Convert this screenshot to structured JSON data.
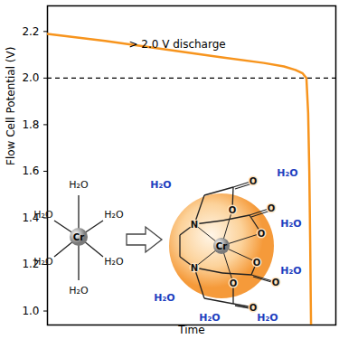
{
  "chart_data": {
    "type": "line",
    "x_label": "Time",
    "y_label": "Flow Cell Potential (V)",
    "xlim": [
      0,
      100
    ],
    "ylim": [
      0.94,
      2.31
    ],
    "yticks": [
      {
        "value": 1.0,
        "label": "1.0"
      },
      1.2,
      1.4,
      1.6,
      1.8,
      {
        "value": 2.0,
        "label": "2.0"
      },
      2.2
    ],
    "tick_labels": "y",
    "color": "#f7941d",
    "line_style": "solid",
    "x": [
      0,
      20,
      40,
      60,
      75,
      82,
      86,
      88.5,
      89.8,
      90.4,
      90.8,
      91.1,
      91.3,
      91.4
    ],
    "values": [
      2.19,
      2.16,
      2.125,
      2.09,
      2.065,
      2.05,
      2.035,
      2.02,
      2.0,
      1.85,
      1.6,
      1.3,
      1.05,
      0.94
    ],
    "reference_line": {
      "value": 2.0,
      "line_style": "dashed"
    },
    "annotation": {
      "text": "> 2.0 V discharge",
      "x": 45,
      "y": 2.145
    },
    "illustration": {
      "aqua_complex": {
        "metal": "Cr",
        "ligands": [
          "H₂O",
          "H₂O",
          "H₂O",
          "H₂O",
          "H₂O",
          "H₂O"
        ]
      },
      "edta_complex": {
        "metal": "Cr",
        "donors": [
          "N",
          "N",
          "O",
          "O",
          "O",
          "O"
        ],
        "carbonyl_oxygens": [
          "O",
          "O",
          "O",
          "O"
        ]
      },
      "solvent": [
        "H₂O",
        "H₂O",
        "H₂O",
        "H₂O",
        "H₂O",
        "H₂O",
        "H₂O"
      ]
    }
  }
}
